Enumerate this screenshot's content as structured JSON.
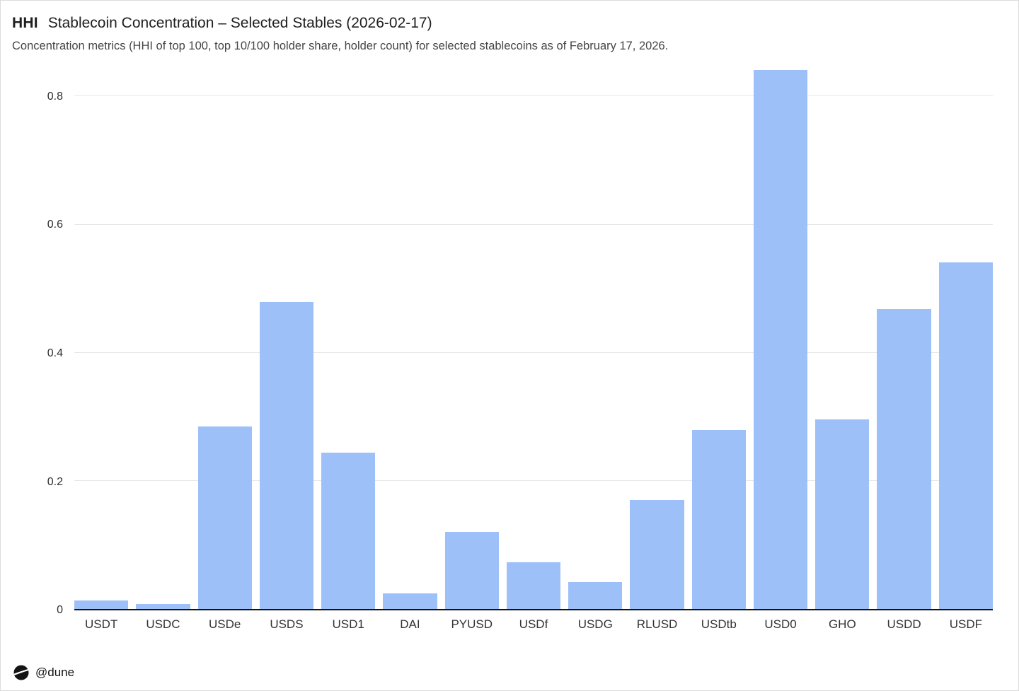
{
  "header": {
    "badge": "HHI",
    "title": "Stablecoin Concentration – Selected Stables (2026-02-17)",
    "subtitle": "Concentration metrics (HHI of top 100, top 10/100 holder share, holder count) for selected stablecoins as of February 17, 2026."
  },
  "footer": {
    "handle": "@dune",
    "logo_icon": "dune-logo-icon"
  },
  "colors": {
    "bar": "#9dc0f8",
    "gridline": "#e6e6e6",
    "axis": "#141414"
  },
  "chart_data": {
    "type": "bar",
    "title": "HHI Stablecoin Concentration – Selected Stables (2026-02-17)",
    "xlabel": "",
    "ylabel": "",
    "categories": [
      "USDT",
      "USDC",
      "USDe",
      "USDS",
      "USD1",
      "DAI",
      "PYUSD",
      "USDf",
      "USDG",
      "RLUSD",
      "USDtb",
      "USD0",
      "GHO",
      "USDD",
      "USDF"
    ],
    "values": [
      0.013,
      0.008,
      0.285,
      0.479,
      0.244,
      0.025,
      0.121,
      0.073,
      0.042,
      0.17,
      0.279,
      0.841,
      0.296,
      0.468,
      0.541
    ],
    "yticks": [
      0,
      0.2,
      0.4,
      0.6,
      0.8
    ],
    "ylim": [
      0,
      0.85
    ],
    "grid": true,
    "legend": "none"
  }
}
